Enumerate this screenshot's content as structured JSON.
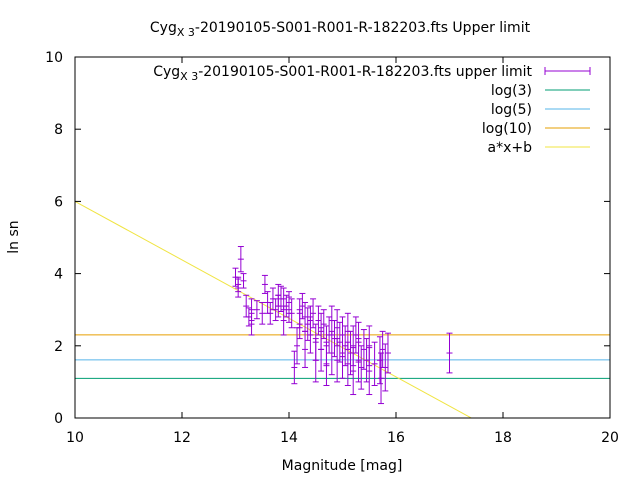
{
  "chart_data": {
    "type": "scatter",
    "title": {
      "main": "Cyg",
      "sub": "X 3",
      "rest": "-20190105-S001-R001-R-182203.fts Upper limit"
    },
    "xlabel": "Magnitude [mag]",
    "ylabel": "ln sn",
    "xlim": [
      10,
      20
    ],
    "ylim": [
      0,
      10
    ],
    "xticks": [
      10,
      12,
      14,
      16,
      18,
      20
    ],
    "yticks": [
      0,
      2,
      4,
      6,
      8,
      10
    ],
    "grid": false,
    "legend_position": "top-right",
    "series": [
      {
        "name": {
          "main": "Cyg",
          "sub": "X 3",
          "rest": "-20190105-S001-R001-R-182203.fts upper limit"
        },
        "kind": "errorbar",
        "color": "#9400d3",
        "points": [
          [
            13.0,
            3.9,
            0.25
          ],
          [
            13.05,
            3.7,
            0.2
          ],
          [
            13.1,
            4.4,
            0.35
          ],
          [
            13.05,
            3.6,
            0.25
          ],
          [
            13.15,
            3.8,
            0.2
          ],
          [
            13.2,
            3.1,
            0.3
          ],
          [
            13.25,
            2.8,
            0.25
          ],
          [
            13.3,
            2.6,
            0.3
          ],
          [
            13.3,
            3.0,
            0.3
          ],
          [
            13.4,
            3.0,
            0.25
          ],
          [
            13.5,
            2.9,
            0.3
          ],
          [
            13.55,
            3.7,
            0.25
          ],
          [
            13.6,
            3.2,
            0.3
          ],
          [
            13.65,
            2.9,
            0.3
          ],
          [
            13.7,
            3.3,
            0.3
          ],
          [
            13.75,
            3.0,
            0.3
          ],
          [
            13.8,
            3.4,
            0.3
          ],
          [
            13.8,
            3.1,
            0.3
          ],
          [
            13.85,
            3.3,
            0.35
          ],
          [
            13.9,
            2.7,
            0.4
          ],
          [
            13.9,
            3.3,
            0.3
          ],
          [
            13.95,
            3.1,
            0.3
          ],
          [
            14.0,
            3.2,
            0.3
          ],
          [
            14.0,
            3.0,
            0.35
          ],
          [
            14.05,
            2.9,
            0.4
          ],
          [
            14.1,
            1.4,
            0.45
          ],
          [
            14.15,
            2.0,
            0.5
          ],
          [
            14.2,
            2.9,
            0.4
          ],
          [
            14.2,
            2.6,
            0.4
          ],
          [
            14.25,
            3.1,
            0.35
          ],
          [
            14.3,
            1.9,
            0.5
          ],
          [
            14.3,
            2.8,
            0.4
          ],
          [
            14.35,
            2.6,
            0.45
          ],
          [
            14.4,
            2.7,
            0.4
          ],
          [
            14.4,
            2.3,
            0.5
          ],
          [
            14.45,
            2.9,
            0.4
          ],
          [
            14.5,
            2.1,
            0.5
          ],
          [
            14.5,
            1.6,
            0.6
          ],
          [
            14.55,
            2.7,
            0.4
          ],
          [
            14.6,
            2.4,
            0.5
          ],
          [
            14.6,
            1.9,
            0.6
          ],
          [
            14.65,
            2.6,
            0.4
          ],
          [
            14.7,
            2.0,
            0.55
          ],
          [
            14.7,
            1.5,
            0.6
          ],
          [
            14.75,
            2.3,
            0.5
          ],
          [
            14.8,
            2.7,
            0.4
          ],
          [
            14.8,
            1.8,
            0.6
          ],
          [
            14.85,
            2.2,
            0.5
          ],
          [
            14.9,
            2.5,
            0.5
          ],
          [
            14.9,
            1.6,
            0.6
          ],
          [
            14.95,
            2.1,
            0.55
          ],
          [
            15.0,
            2.3,
            0.5
          ],
          [
            15.0,
            1.7,
            0.6
          ],
          [
            15.05,
            2.0,
            0.55
          ],
          [
            15.1,
            1.5,
            0.6
          ],
          [
            15.1,
            2.4,
            0.5
          ],
          [
            15.15,
            1.8,
            0.6
          ],
          [
            15.2,
            2.0,
            0.55
          ],
          [
            15.2,
            1.3,
            0.65
          ],
          [
            15.25,
            2.3,
            0.5
          ],
          [
            15.3,
            1.6,
            0.6
          ],
          [
            15.3,
            2.1,
            0.55
          ],
          [
            15.35,
            1.4,
            0.6
          ],
          [
            15.4,
            1.9,
            0.55
          ],
          [
            15.45,
            1.6,
            0.6
          ],
          [
            15.5,
            1.3,
            0.65
          ],
          [
            15.5,
            2.0,
            0.55
          ],
          [
            15.6,
            1.5,
            0.6
          ],
          [
            15.7,
            1.6,
            0.65
          ],
          [
            15.72,
            1.1,
            0.7
          ],
          [
            15.75,
            1.9,
            0.5
          ],
          [
            15.8,
            1.4,
            0.65
          ],
          [
            15.85,
            1.8,
            0.55
          ],
          [
            17.0,
            1.8,
            0.55
          ]
        ]
      },
      {
        "name": "log(3)",
        "kind": "hline",
        "y": 1.0986,
        "color": "#009e73"
      },
      {
        "name": "log(5)",
        "kind": "hline",
        "y": 1.6094,
        "color": "#56b4e9"
      },
      {
        "name": "log(10)",
        "kind": "hline",
        "y": 2.3026,
        "color": "#e69f00"
      },
      {
        "name": "a*x+b",
        "kind": "fit",
        "a": -0.81,
        "b": 14.1,
        "color": "#f0e442"
      }
    ]
  }
}
